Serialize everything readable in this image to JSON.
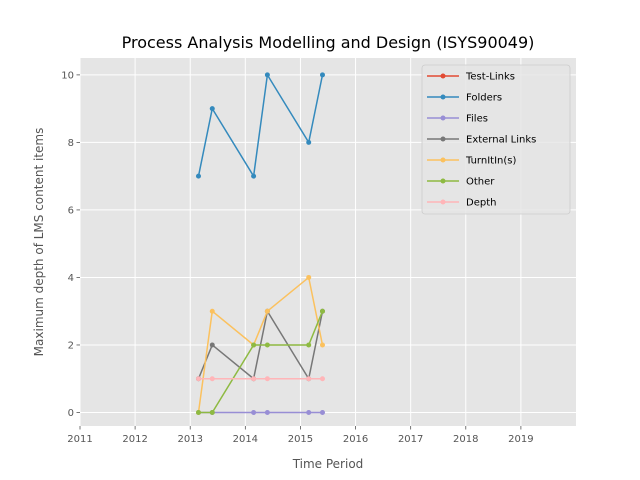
{
  "chart_data": {
    "type": "line",
    "title": "Process Analysis Modelling and Design (ISYS90049)",
    "xlabel": "Time Period",
    "ylabel": "Maximum depth of LMS content items",
    "xlim": [
      2011,
      2020
    ],
    "ylim": [
      -0.4,
      10.5
    ],
    "x_ticks": [
      "2011",
      "2012",
      "2013",
      "2014",
      "2015",
      "2016",
      "2017",
      "2018",
      "2019"
    ],
    "y_ticks": [
      "0",
      "2",
      "4",
      "6",
      "8",
      "10"
    ],
    "grid": true,
    "legend_position": "top-right",
    "x": [
      2013.15,
      2013.4,
      2014.15,
      2014.4,
      2015.15,
      2015.4
    ],
    "series": [
      {
        "name": "Test-Links",
        "color": "#E24A33",
        "values": [
          null,
          null,
          null,
          null,
          null,
          null
        ]
      },
      {
        "name": "Folders",
        "color": "#348ABD",
        "values": [
          7,
          9,
          7,
          10,
          8,
          10
        ]
      },
      {
        "name": "Files",
        "color": "#988ED5",
        "values": [
          0,
          0,
          0,
          0,
          0,
          0
        ]
      },
      {
        "name": "External Links",
        "color": "#777777",
        "values": [
          1,
          2,
          1,
          3,
          1,
          3
        ]
      },
      {
        "name": "TurnItIn(s)",
        "color": "#FBC15E",
        "values": [
          0,
          3,
          2,
          3,
          4,
          2
        ]
      },
      {
        "name": "Other",
        "color": "#8EBA42",
        "values": [
          0,
          0,
          2,
          2,
          2,
          3
        ]
      },
      {
        "name": "Depth",
        "color": "#FFB5B8",
        "values": [
          1,
          1,
          1,
          1,
          1,
          1
        ]
      }
    ]
  }
}
